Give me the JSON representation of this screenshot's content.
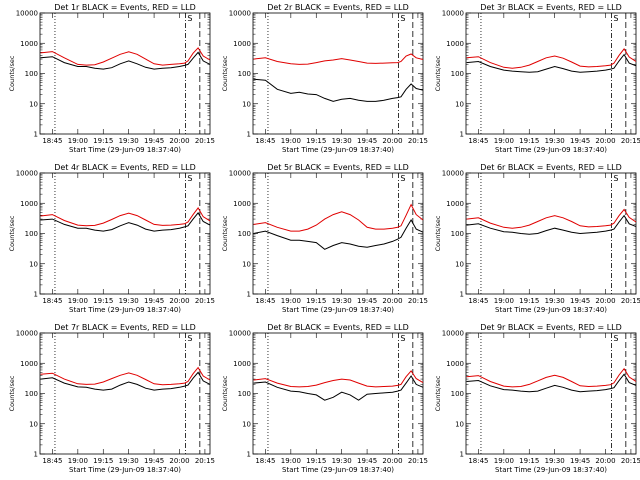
{
  "chart_data": {
    "type": "line",
    "y_scale": "log",
    "ylim": [
      1,
      10000
    ],
    "y_ticks": [
      1,
      10,
      100,
      1000,
      10000
    ],
    "y_tick_labels": [
      "1",
      "10",
      "100",
      "1000",
      "10000"
    ],
    "x_start": "18:37:40",
    "x_end": "20:18:00",
    "x_ticks": [
      "18:45",
      "19:00",
      "19:15",
      "19:30",
      "19:45",
      "20:00",
      "20:15"
    ],
    "ylabel": "Counts/sec",
    "xlabel": "Start Time (29-Jun-09 18:37:40)",
    "vlines": {
      "dotted": [
        "18:46:30"
      ],
      "dashdot": [
        "20:03:30"
      ],
      "dashed": [
        "20:12:00"
      ]
    },
    "flag_label": "S",
    "colors": {
      "black": "#000000",
      "red": "#e00000"
    },
    "times": [
      "18:38",
      "18:45",
      "18:52",
      "19:00",
      "19:05",
      "19:10",
      "19:15",
      "19:20",
      "19:25",
      "19:30",
      "19:35",
      "19:40",
      "19:45",
      "19:50",
      "19:55",
      "20:00",
      "20:03",
      "20:05",
      "20:08",
      "20:11",
      "20:14",
      "20:18"
    ],
    "panels": [
      {
        "title": "Det 1r BLACK = Events, RED = LLD",
        "series": [
          {
            "color": "black",
            "values": [
              330,
              360,
              230,
              170,
              170,
              150,
              140,
              155,
              210,
              260,
              210,
              160,
              140,
              150,
              155,
              170,
              185,
              200,
              320,
              500,
              260,
              200
            ]
          },
          {
            "color": "red",
            "values": [
              480,
              530,
              330,
              200,
              190,
              195,
              240,
              320,
              430,
              520,
              430,
              300,
              210,
              190,
              200,
              210,
              220,
              260,
              470,
              700,
              380,
              280
            ]
          }
        ]
      },
      {
        "title": "Det 2r BLACK = Events, RED = LLD",
        "series": [
          {
            "color": "black",
            "values": [
              65,
              60,
              30,
              22,
              24,
              21,
              20,
              15,
              12,
              14,
              15,
              13,
              12,
              12,
              13,
              15,
              16,
              17,
              30,
              45,
              32,
              28
            ]
          },
          {
            "color": "red",
            "values": [
              300,
              330,
              250,
              210,
              200,
              205,
              230,
              260,
              280,
              310,
              280,
              250,
              220,
              215,
              220,
              225,
              230,
              250,
              380,
              440,
              330,
              290
            ]
          }
        ]
      },
      {
        "title": "Det 3r BLACK = Events, RED = LLD",
        "series": [
          {
            "color": "black",
            "values": [
              230,
              250,
              170,
              130,
              120,
              115,
              110,
              115,
              140,
              170,
              145,
              120,
              110,
              115,
              120,
              130,
              140,
              150,
              260,
              420,
              220,
              180
            ]
          },
          {
            "color": "red",
            "values": [
              330,
              360,
              230,
              160,
              150,
              160,
              190,
              250,
              330,
              380,
              320,
              240,
              175,
              165,
              170,
              180,
              190,
              220,
              400,
              650,
              350,
              250
            ]
          }
        ]
      },
      {
        "title": "Det 4r BLACK = Events, RED = LLD",
        "series": [
          {
            "color": "black",
            "values": [
              280,
              300,
              200,
              150,
              150,
              130,
              120,
              135,
              180,
              230,
              190,
              140,
              120,
              130,
              135,
              150,
              165,
              180,
              300,
              480,
              250,
              190
            ]
          },
          {
            "color": "red",
            "values": [
              380,
              420,
              270,
              190,
              180,
              185,
              220,
              290,
              390,
              470,
              390,
              280,
              200,
              185,
              190,
              200,
              210,
              240,
              420,
              700,
              360,
              260
            ]
          }
        ]
      },
      {
        "title": "Det 5r BLACK = Events, RED = LLD",
        "series": [
          {
            "color": "black",
            "values": [
              100,
              120,
              85,
              60,
              60,
              55,
              50,
              30,
              40,
              50,
              45,
              38,
              35,
              40,
              45,
              55,
              65,
              75,
              150,
              280,
              140,
              110
            ]
          },
          {
            "color": "red",
            "values": [
              200,
              230,
              160,
              120,
              120,
              140,
              190,
              300,
              420,
              520,
              420,
              280,
              160,
              140,
              140,
              150,
              160,
              180,
              400,
              900,
              420,
              280
            ]
          }
        ]
      },
      {
        "title": "Det 6r BLACK = Events, RED = LLD",
        "series": [
          {
            "color": "black",
            "values": [
              190,
              210,
              150,
              115,
              110,
              100,
              95,
              100,
              125,
              150,
              130,
              110,
              100,
              105,
              110,
              120,
              130,
              140,
              240,
              390,
              210,
              170
            ]
          },
          {
            "color": "red",
            "values": [
              300,
              330,
              220,
              160,
              150,
              160,
              190,
              250,
              330,
              390,
              330,
              250,
              180,
              165,
              170,
              180,
              190,
              220,
              390,
              620,
              340,
              240
            ]
          }
        ]
      },
      {
        "title": "Det 7r BLACK = Events, RED = LLD",
        "series": [
          {
            "color": "black",
            "values": [
              300,
              330,
              220,
              165,
              160,
              140,
              130,
              140,
              190,
              240,
              200,
              150,
              130,
              140,
              145,
              160,
              175,
              190,
              320,
              500,
              260,
              200
            ]
          },
          {
            "color": "red",
            "values": [
              430,
              470,
              300,
              210,
              200,
              205,
              240,
              310,
              400,
              480,
              400,
              290,
              210,
              195,
              200,
              210,
              220,
              250,
              450,
              720,
              380,
              280
            ]
          }
        ]
      },
      {
        "title": "Det 8r BLACK = Events, RED = LLD",
        "series": [
          {
            "color": "black",
            "values": [
              220,
              240,
              160,
              120,
              115,
              100,
              90,
              60,
              75,
              110,
              90,
              60,
              95,
              100,
              105,
              110,
              120,
              130,
              220,
              380,
              200,
              160
            ]
          },
          {
            "color": "red",
            "values": [
              280,
              310,
              220,
              170,
              165,
              170,
              190,
              230,
              270,
              300,
              280,
              220,
              175,
              165,
              170,
              175,
              185,
              200,
              360,
              560,
              310,
              230
            ]
          }
        ]
      },
      {
        "title": "Det 9r BLACK = Events, RED = LLD",
        "series": [
          {
            "color": "black",
            "values": [
              250,
              270,
              180,
              135,
              130,
              120,
              115,
              120,
              150,
              185,
              160,
              130,
              115,
              120,
              125,
              135,
              145,
              155,
              270,
              430,
              230,
              185
            ]
          },
          {
            "color": "red",
            "values": [
              360,
              390,
              250,
              175,
              165,
              170,
              200,
              260,
              340,
              400,
              340,
              250,
              180,
              170,
              175,
              185,
              195,
              225,
              410,
              660,
              350,
              250
            ]
          }
        ]
      }
    ]
  }
}
